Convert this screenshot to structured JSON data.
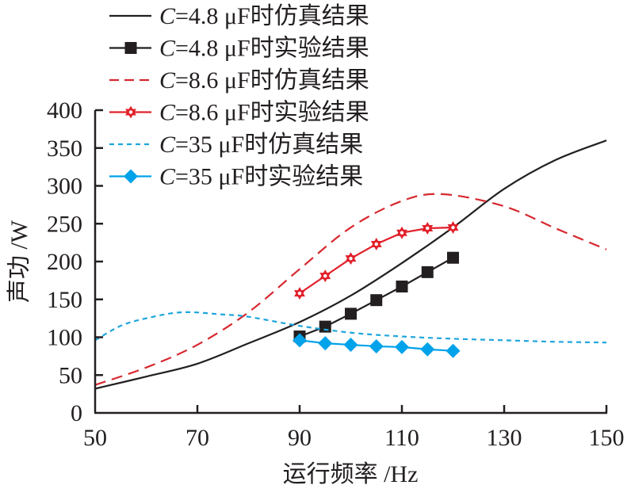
{
  "chart_data": {
    "type": "line",
    "title": "",
    "xlabel": "运行频率 /Hz",
    "ylabel": "声功 /W",
    "xlim": [
      50,
      150
    ],
    "ylim": [
      0,
      400
    ],
    "xticks": [
      50,
      70,
      90,
      110,
      130,
      150
    ],
    "yticks": [
      0,
      50,
      100,
      150,
      200,
      250,
      300,
      350,
      400
    ],
    "grid": false,
    "legend_position": "top-left",
    "series": [
      {
        "name": "C=4.8 μF时仿真结果",
        "legend_prefix": "C",
        "legend_rest": "=4.8 μF时仿真结果",
        "style": "solid",
        "marker": "none",
        "color": "#231f20",
        "x": [
          50,
          60,
          70,
          80,
          90,
          100,
          110,
          120,
          130,
          140,
          150
        ],
        "y": [
          32,
          48,
          65,
          92,
          120,
          155,
          198,
          245,
          296,
          334,
          360
        ]
      },
      {
        "name": "C=4.8 μF时实验结果",
        "legend_prefix": "C",
        "legend_rest": "=4.8 μF时实验结果",
        "style": "solid",
        "marker": "square",
        "color": "#231f20",
        "x": [
          90,
          95,
          100,
          105,
          110,
          115,
          120
        ],
        "y": [
          101,
          114,
          131,
          149,
          167,
          186,
          205
        ]
      },
      {
        "name": "C=8.6 μF时仿真结果",
        "legend_prefix": "C",
        "legend_rest": "=8.6 μF时仿真结果",
        "style": "dashed",
        "marker": "none",
        "color": "#d7282f",
        "x": [
          50,
          60,
          70,
          80,
          90,
          100,
          110,
          118,
          130,
          140,
          150
        ],
        "y": [
          37,
          60,
          90,
          133,
          190,
          245,
          280,
          289,
          273,
          244,
          216
        ]
      },
      {
        "name": "C=8.6 μF时实验结果",
        "legend_prefix": "C",
        "legend_rest": "=8.6 μF时实验结果",
        "style": "solid",
        "marker": "star",
        "color": "#e1202a",
        "x": [
          90,
          95,
          100,
          105,
          110,
          115,
          120
        ],
        "y": [
          158,
          181,
          204,
          223,
          238,
          244,
          245
        ]
      },
      {
        "name": "C=35 μF时仿真结果",
        "legend_prefix": "C",
        "legend_rest": "=35 μF时仿真结果",
        "style": "dotted",
        "marker": "none",
        "color": "#1ea6dc",
        "x": [
          50,
          55,
          60,
          67,
          75,
          80,
          90,
          100,
          110,
          120,
          130,
          140,
          150
        ],
        "y": [
          96,
          115,
          125,
          133,
          130,
          127,
          115,
          106,
          101,
          98,
          96,
          94,
          93
        ]
      },
      {
        "name": "C=35 μF时实验结果",
        "legend_prefix": "C",
        "legend_rest": "=35 μF时实验结果",
        "style": "solid",
        "marker": "diamond",
        "color": "#00a2e9",
        "x": [
          90,
          95,
          100,
          105,
          110,
          115,
          120
        ],
        "y": [
          96,
          92,
          90,
          88,
          87,
          84,
          82
        ]
      }
    ]
  }
}
